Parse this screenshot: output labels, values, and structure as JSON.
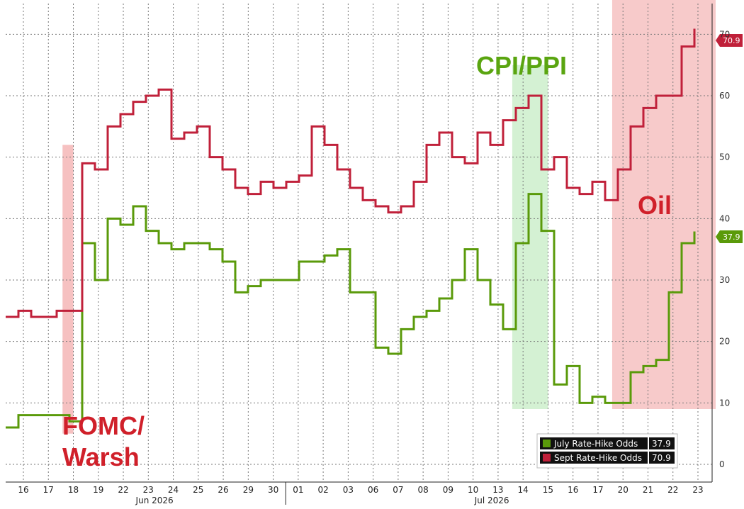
{
  "chart_data": {
    "type": "line",
    "title": "",
    "xlabel": "",
    "ylabel": "",
    "ylim": [
      0,
      75
    ],
    "yticks": [
      0,
      10,
      20,
      30,
      40,
      50,
      60,
      70
    ],
    "grid": true,
    "legend_position": "bottom-right",
    "x_tick_labels": [
      "16",
      "17",
      "18",
      "19",
      "22",
      "23",
      "24",
      "25",
      "26",
      "29",
      "30",
      "01",
      "02",
      "03",
      "06",
      "07",
      "08",
      "09",
      "10",
      "13",
      "14",
      "15",
      "16",
      "17",
      "20",
      "21",
      "22",
      "23"
    ],
    "month_labels": [
      "Jun 2026",
      "Jul 2026"
    ],
    "series": [
      {
        "name": "July Rate-Hike Odds",
        "color": "#5a9a0a",
        "last_value": "37.9",
        "values": [
          6,
          8,
          8,
          8,
          8,
          7,
          36,
          30,
          40,
          39,
          42,
          38,
          36,
          35,
          36,
          36,
          35,
          33,
          28,
          29,
          30,
          30,
          30,
          33,
          33,
          34,
          35,
          28,
          28,
          19,
          18,
          22,
          24,
          25,
          27,
          30,
          35,
          30,
          26,
          22,
          36,
          44,
          38,
          13,
          16,
          10,
          11,
          10,
          10,
          15,
          16,
          17,
          28,
          36,
          37.9
        ]
      },
      {
        "name": "Sept Rate-Hike Odds",
        "color": "#c0203a",
        "last_value": "70.9",
        "values": [
          24,
          25,
          24,
          24,
          25,
          25,
          49,
          48,
          55,
          57,
          59,
          60,
          61,
          53,
          54,
          55,
          50,
          48,
          45,
          44,
          46,
          45,
          46,
          47,
          55,
          52,
          48,
          45,
          43,
          42,
          41,
          42,
          46,
          52,
          54,
          50,
          49,
          54,
          52,
          56,
          58,
          60,
          48,
          50,
          45,
          44,
          46,
          43,
          48,
          55,
          58,
          60,
          60,
          68,
          70.9
        ]
      }
    ],
    "annotations": [
      "FOMC/\nWarsh",
      "CPI/PPI",
      "Oil"
    ],
    "shaded_regions": [
      {
        "label": "FOMC/\nWarsh",
        "from_x": "17",
        "to_x": "18",
        "y_from": 5,
        "y_to": 52,
        "color": "#f4b6b6"
      },
      {
        "label": "CPI/PPI",
        "from_x": "13",
        "to_x": "15",
        "y_from": 9,
        "y_to": 65,
        "color": "#cdeecb"
      },
      {
        "label": "Oil",
        "from_x": "17",
        "to_x": "23",
        "y_from": 9,
        "y_to": 76,
        "color": "#f6c1c1"
      }
    ]
  },
  "annotations": {
    "fomc_line1": "FOMC/",
    "fomc_line2": "Warsh",
    "cpi": "CPI/PPI",
    "oil": "Oil"
  },
  "tags": {
    "sept": "70.9",
    "july": "37.9"
  },
  "legend": {
    "july_label": "July Rate-Hike Odds",
    "july_value": "37.9",
    "sept_label": "Sept Rate-Hike Odds",
    "sept_value": "70.9"
  },
  "colors": {
    "july": "#5a9a0a",
    "sept": "#c0203a",
    "annotation_red": "#d0202a",
    "annotation_green": "#5aa510"
  }
}
